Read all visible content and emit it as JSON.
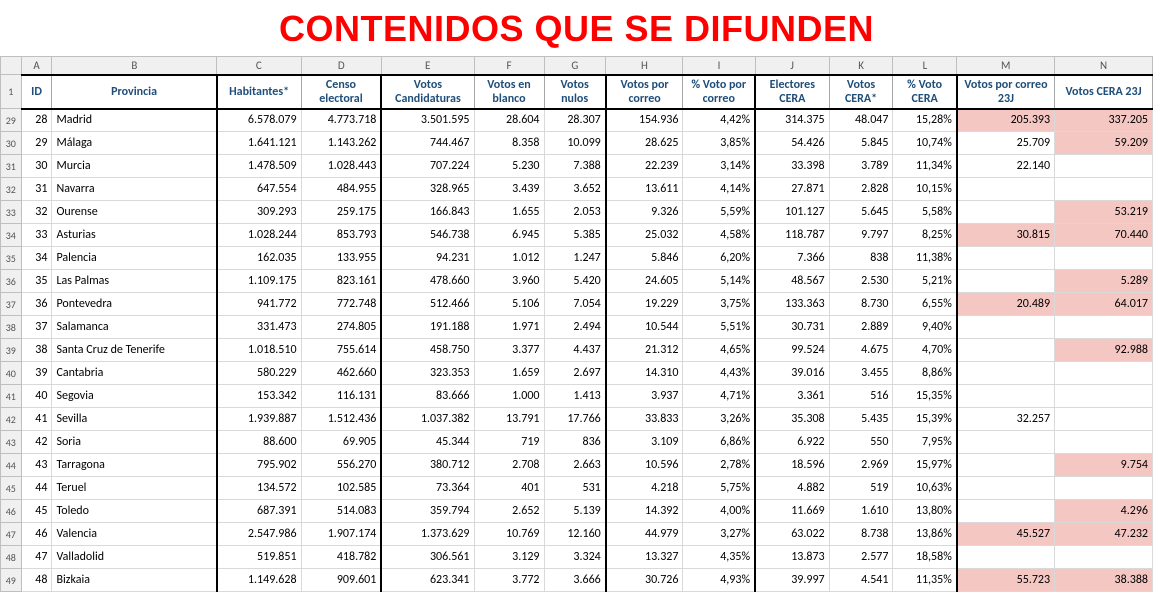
{
  "title": {
    "text": "CONTENIDOS QUE SE DIFUNDEN",
    "color": "#ff0000"
  },
  "colLetters": [
    "",
    "A",
    "B",
    "C",
    "D",
    "E",
    "F",
    "G",
    "H",
    "I",
    "J",
    "K",
    "L",
    "M",
    "N"
  ],
  "headerRowNum": "1",
  "headers": {
    "id": "ID",
    "provincia": "Provincia",
    "habitantes": "Habitantes*",
    "censo": "Censo electoral",
    "candidaturas": "Votos Candidaturas",
    "blanco": "Votos en blanco",
    "nulos": "Votos nulos",
    "correo": "Votos por correo",
    "pctcorreo": "% Voto por correo",
    "electcera": "Electores CERA",
    "votoscera": "Votos CERA*",
    "pctcera": "% Voto CERA",
    "correo23j": "Votos por correo 23J",
    "cera23j": "Votos CERA 23J"
  },
  "headerColors": {
    "blue": "#1f4e79"
  },
  "pink": "#f4c7c3",
  "rows": [
    {
      "rn": "29",
      "id": "28",
      "prov": "Madrid",
      "hab": "6.578.079",
      "cen": "4.773.718",
      "cand": "3.501.595",
      "bla": "28.604",
      "nul": "28.307",
      "corr": "154.936",
      "pcorr": "4,42%",
      "ecera": "314.375",
      "vcera": "48.047",
      "pcera": "15,28%",
      "c23": "205.393",
      "v23": "337.205",
      "c23p": true,
      "v23p": true
    },
    {
      "rn": "30",
      "id": "29",
      "prov": "Málaga",
      "hab": "1.641.121",
      "cen": "1.143.262",
      "cand": "744.467",
      "bla": "8.358",
      "nul": "10.099",
      "corr": "28.625",
      "pcorr": "3,85%",
      "ecera": "54.426",
      "vcera": "5.845",
      "pcera": "10,74%",
      "c23": "25.709",
      "v23": "59.209",
      "c23p": false,
      "v23p": true
    },
    {
      "rn": "31",
      "id": "30",
      "prov": "Murcia",
      "hab": "1.478.509",
      "cen": "1.028.443",
      "cand": "707.224",
      "bla": "5.230",
      "nul": "7.388",
      "corr": "22.239",
      "pcorr": "3,14%",
      "ecera": "33.398",
      "vcera": "3.789",
      "pcera": "11,34%",
      "c23": "22.140",
      "v23": "",
      "c23p": false,
      "v23p": false
    },
    {
      "rn": "32",
      "id": "31",
      "prov": "Navarra",
      "hab": "647.554",
      "cen": "484.955",
      "cand": "328.965",
      "bla": "3.439",
      "nul": "3.652",
      "corr": "13.611",
      "pcorr": "4,14%",
      "ecera": "27.871",
      "vcera": "2.828",
      "pcera": "10,15%",
      "c23": "",
      "v23": "",
      "c23p": false,
      "v23p": false
    },
    {
      "rn": "33",
      "id": "32",
      "prov": "Ourense",
      "hab": "309.293",
      "cen": "259.175",
      "cand": "166.843",
      "bla": "1.655",
      "nul": "2.053",
      "corr": "9.326",
      "pcorr": "5,59%",
      "ecera": "101.127",
      "vcera": "5.645",
      "pcera": "5,58%",
      "c23": "",
      "v23": "53.219",
      "c23p": false,
      "v23p": true
    },
    {
      "rn": "34",
      "id": "33",
      "prov": "Asturias",
      "hab": "1.028.244",
      "cen": "853.793",
      "cand": "546.738",
      "bla": "6.945",
      "nul": "5.385",
      "corr": "25.032",
      "pcorr": "4,58%",
      "ecera": "118.787",
      "vcera": "9.797",
      "pcera": "8,25%",
      "c23": "30.815",
      "v23": "70.440",
      "c23p": true,
      "v23p": true
    },
    {
      "rn": "35",
      "id": "34",
      "prov": "Palencia",
      "hab": "162.035",
      "cen": "133.955",
      "cand": "94.231",
      "bla": "1.012",
      "nul": "1.247",
      "corr": "5.846",
      "pcorr": "6,20%",
      "ecera": "7.366",
      "vcera": "838",
      "pcera": "11,38%",
      "c23": "",
      "v23": "",
      "c23p": false,
      "v23p": false
    },
    {
      "rn": "36",
      "id": "35",
      "prov": "Las Palmas",
      "hab": "1.109.175",
      "cen": "823.161",
      "cand": "478.660",
      "bla": "3.960",
      "nul": "5.420",
      "corr": "24.605",
      "pcorr": "5,14%",
      "ecera": "48.567",
      "vcera": "2.530",
      "pcera": "5,21%",
      "c23": "",
      "v23": "5.289",
      "c23p": false,
      "v23p": true
    },
    {
      "rn": "37",
      "id": "36",
      "prov": "Pontevedra",
      "hab": "941.772",
      "cen": "772.748",
      "cand": "512.466",
      "bla": "5.106",
      "nul": "7.054",
      "corr": "19.229",
      "pcorr": "3,75%",
      "ecera": "133.363",
      "vcera": "8.730",
      "pcera": "6,55%",
      "c23": "20.489",
      "v23": "64.017",
      "c23p": true,
      "v23p": true
    },
    {
      "rn": "38",
      "id": "37",
      "prov": "Salamanca",
      "hab": "331.473",
      "cen": "274.805",
      "cand": "191.188",
      "bla": "1.971",
      "nul": "2.494",
      "corr": "10.544",
      "pcorr": "5,51%",
      "ecera": "30.731",
      "vcera": "2.889",
      "pcera": "9,40%",
      "c23": "",
      "v23": "",
      "c23p": false,
      "v23p": false
    },
    {
      "rn": "39",
      "id": "38",
      "prov": "Santa Cruz de Tenerife",
      "hab": "1.018.510",
      "cen": "755.614",
      "cand": "458.750",
      "bla": "3.377",
      "nul": "4.437",
      "corr": "21.312",
      "pcorr": "4,65%",
      "ecera": "99.524",
      "vcera": "4.675",
      "pcera": "4,70%",
      "c23": "",
      "v23": "92.988",
      "c23p": false,
      "v23p": true
    },
    {
      "rn": "40",
      "id": "39",
      "prov": "Cantabria",
      "hab": "580.229",
      "cen": "462.660",
      "cand": "323.353",
      "bla": "1.659",
      "nul": "2.697",
      "corr": "14.310",
      "pcorr": "4,43%",
      "ecera": "39.016",
      "vcera": "3.455",
      "pcera": "8,86%",
      "c23": "",
      "v23": "",
      "c23p": false,
      "v23p": false
    },
    {
      "rn": "41",
      "id": "40",
      "prov": "Segovia",
      "hab": "153.342",
      "cen": "116.131",
      "cand": "83.666",
      "bla": "1.000",
      "nul": "1.413",
      "corr": "3.937",
      "pcorr": "4,71%",
      "ecera": "3.361",
      "vcera": "516",
      "pcera": "15,35%",
      "c23": "",
      "v23": "",
      "c23p": false,
      "v23p": false
    },
    {
      "rn": "42",
      "id": "41",
      "prov": "Sevilla",
      "hab": "1.939.887",
      "cen": "1.512.436",
      "cand": "1.037.382",
      "bla": "13.791",
      "nul": "17.766",
      "corr": "33.833",
      "pcorr": "3,26%",
      "ecera": "35.308",
      "vcera": "5.435",
      "pcera": "15,39%",
      "c23": "32.257",
      "v23": "",
      "c23p": false,
      "v23p": false
    },
    {
      "rn": "43",
      "id": "42",
      "prov": "Soria",
      "hab": "88.600",
      "cen": "69.905",
      "cand": "45.344",
      "bla": "719",
      "nul": "836",
      "corr": "3.109",
      "pcorr": "6,86%",
      "ecera": "6.922",
      "vcera": "550",
      "pcera": "7,95%",
      "c23": "",
      "v23": "",
      "c23p": false,
      "v23p": false
    },
    {
      "rn": "44",
      "id": "43",
      "prov": "Tarragona",
      "hab": "795.902",
      "cen": "556.270",
      "cand": "380.712",
      "bla": "2.708",
      "nul": "2.663",
      "corr": "10.596",
      "pcorr": "2,78%",
      "ecera": "18.596",
      "vcera": "2.969",
      "pcera": "15,97%",
      "c23": "",
      "v23": "9.754",
      "c23p": false,
      "v23p": true
    },
    {
      "rn": "45",
      "id": "44",
      "prov": "Teruel",
      "hab": "134.572",
      "cen": "102.585",
      "cand": "73.364",
      "bla": "401",
      "nul": "531",
      "corr": "4.218",
      "pcorr": "5,75%",
      "ecera": "4.882",
      "vcera": "519",
      "pcera": "10,63%",
      "c23": "",
      "v23": "",
      "c23p": false,
      "v23p": false
    },
    {
      "rn": "46",
      "id": "45",
      "prov": "Toledo",
      "hab": "687.391",
      "cen": "514.083",
      "cand": "359.794",
      "bla": "2.652",
      "nul": "5.139",
      "corr": "14.392",
      "pcorr": "4,00%",
      "ecera": "11.669",
      "vcera": "1.610",
      "pcera": "13,80%",
      "c23": "",
      "v23": "4.296",
      "c23p": false,
      "v23p": true
    },
    {
      "rn": "47",
      "id": "46",
      "prov": "Valencia",
      "hab": "2.547.986",
      "cen": "1.907.174",
      "cand": "1.373.629",
      "bla": "10.769",
      "nul": "12.160",
      "corr": "44.979",
      "pcorr": "3,27%",
      "ecera": "63.022",
      "vcera": "8.738",
      "pcera": "13,86%",
      "c23": "45.527",
      "v23": "47.232",
      "c23p": true,
      "v23p": true
    },
    {
      "rn": "48",
      "id": "47",
      "prov": "Valladolid",
      "hab": "519.851",
      "cen": "418.782",
      "cand": "306.561",
      "bla": "3.129",
      "nul": "3.324",
      "corr": "13.327",
      "pcorr": "4,35%",
      "ecera": "13.873",
      "vcera": "2.577",
      "pcera": "18,58%",
      "c23": "",
      "v23": "",
      "c23p": false,
      "v23p": false
    },
    {
      "rn": "49",
      "id": "48",
      "prov": "Bizkaia",
      "hab": "1.149.628",
      "cen": "909.601",
      "cand": "623.341",
      "bla": "3.772",
      "nul": "3.666",
      "corr": "30.726",
      "pcorr": "4,93%",
      "ecera": "39.997",
      "vcera": "4.541",
      "pcera": "11,35%",
      "c23": "55.723",
      "v23": "38.388",
      "c23p": true,
      "v23p": true
    }
  ]
}
